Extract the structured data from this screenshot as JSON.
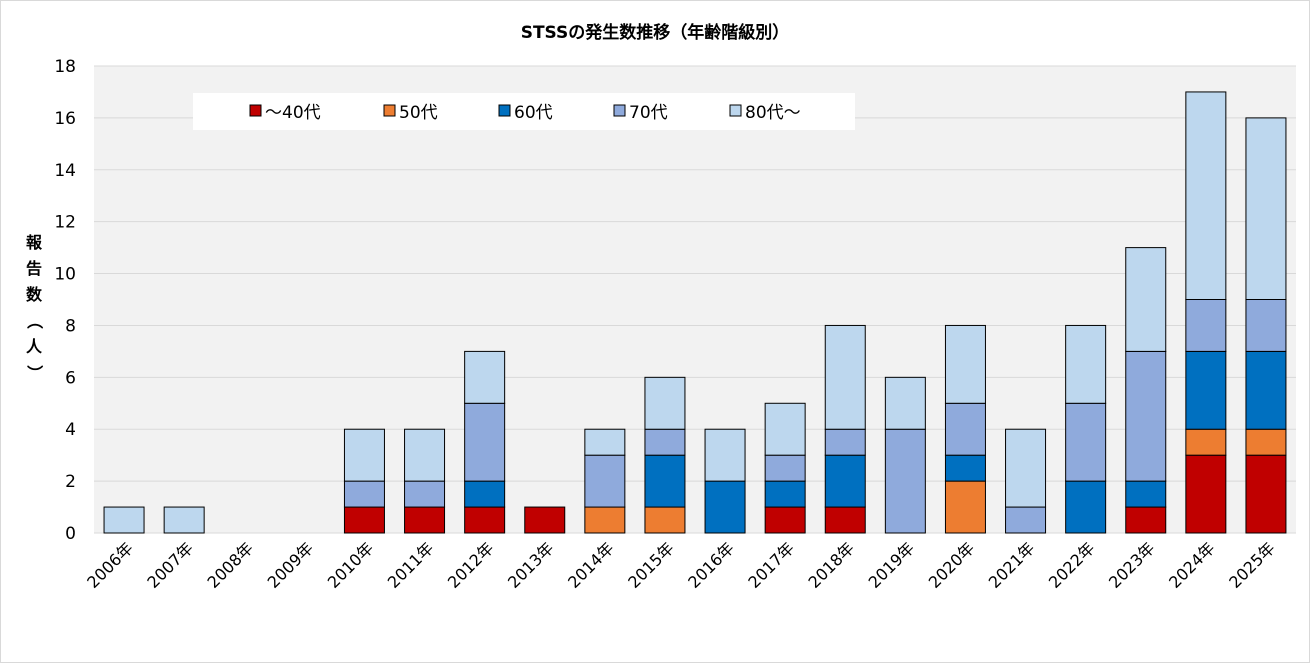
{
  "chart_data": {
    "type": "bar",
    "stacked": true,
    "title": "STSSの発生数推移（年齢階級別）",
    "ylabel": "報告数（人）",
    "ylim": [
      0,
      18
    ],
    "yticks": [
      0,
      2,
      4,
      6,
      8,
      10,
      12,
      14,
      16,
      18
    ],
    "grid": true,
    "legend_position": "top-left",
    "categories": [
      "2006年",
      "2007年",
      "2008年",
      "2009年",
      "2010年",
      "2011年",
      "2012年",
      "2013年",
      "2014年",
      "2015年",
      "2016年",
      "2017年",
      "2018年",
      "2019年",
      "2020年",
      "2021年",
      "2022年",
      "2023年",
      "2024年",
      "2025年"
    ],
    "series": [
      {
        "name": "～40代",
        "color": "#c00000",
        "values": [
          0,
          0,
          0,
          0,
          1,
          1,
          1,
          1,
          0,
          0,
          0,
          1,
          1,
          0,
          0,
          0,
          0,
          1,
          3,
          3
        ]
      },
      {
        "name": "50代",
        "color": "#ed7d31",
        "values": [
          0,
          0,
          0,
          0,
          0,
          0,
          0,
          0,
          1,
          1,
          0,
          0,
          0,
          0,
          2,
          0,
          0,
          0,
          1,
          1
        ]
      },
      {
        "name": "60代",
        "color": "#0070c0",
        "values": [
          0,
          0,
          0,
          0,
          0,
          0,
          1,
          0,
          0,
          2,
          2,
          1,
          2,
          0,
          1,
          0,
          2,
          1,
          3,
          3
        ]
      },
      {
        "name": "70代",
        "color": "#8faadc",
        "values": [
          0,
          0,
          0,
          0,
          1,
          1,
          3,
          0,
          2,
          1,
          0,
          1,
          1,
          4,
          2,
          1,
          3,
          5,
          2,
          2
        ]
      },
      {
        "name": "80代～",
        "color": "#bdd7ee",
        "values": [
          1,
          1,
          0,
          0,
          2,
          2,
          2,
          0,
          1,
          2,
          2,
          2,
          4,
          2,
          3,
          3,
          3,
          4,
          8,
          7
        ]
      }
    ]
  },
  "colors": {
    "plot_background": "#f2f2f2",
    "gridline": "#d9d9d9",
    "bar_outline": "#000000"
  }
}
